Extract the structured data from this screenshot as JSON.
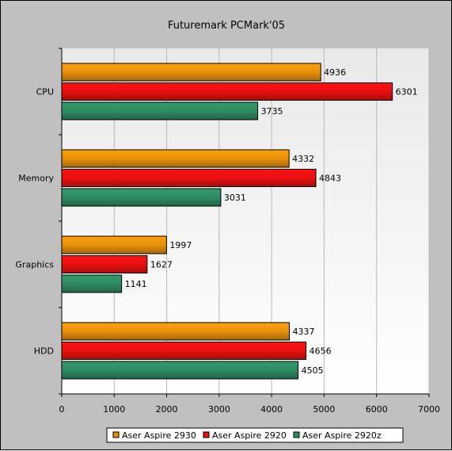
{
  "chart_data": {
    "type": "bar",
    "orientation": "horizontal",
    "title": "Futuremark PCMark'05",
    "categories": [
      "CPU",
      "Memory",
      "Graphics",
      "HDD"
    ],
    "series": [
      {
        "name": "Aser Aspire 2930",
        "color": "#e8900c",
        "values": [
          4936,
          4332,
          1997,
          4337
        ]
      },
      {
        "name": "Aser Aspire 2920",
        "color": "#e81010",
        "values": [
          6301,
          4843,
          1627,
          4656
        ]
      },
      {
        "name": "Aser Aspire 2920z",
        "color": "#2e8b62",
        "values": [
          3735,
          3031,
          1141,
          4505
        ]
      }
    ],
    "xlim": [
      0,
      7000
    ],
    "x_ticks": [
      "0",
      "1000",
      "2000",
      "3000",
      "4000",
      "5000",
      "6000",
      "7000"
    ],
    "grid": true,
    "legend_position": "bottom"
  }
}
